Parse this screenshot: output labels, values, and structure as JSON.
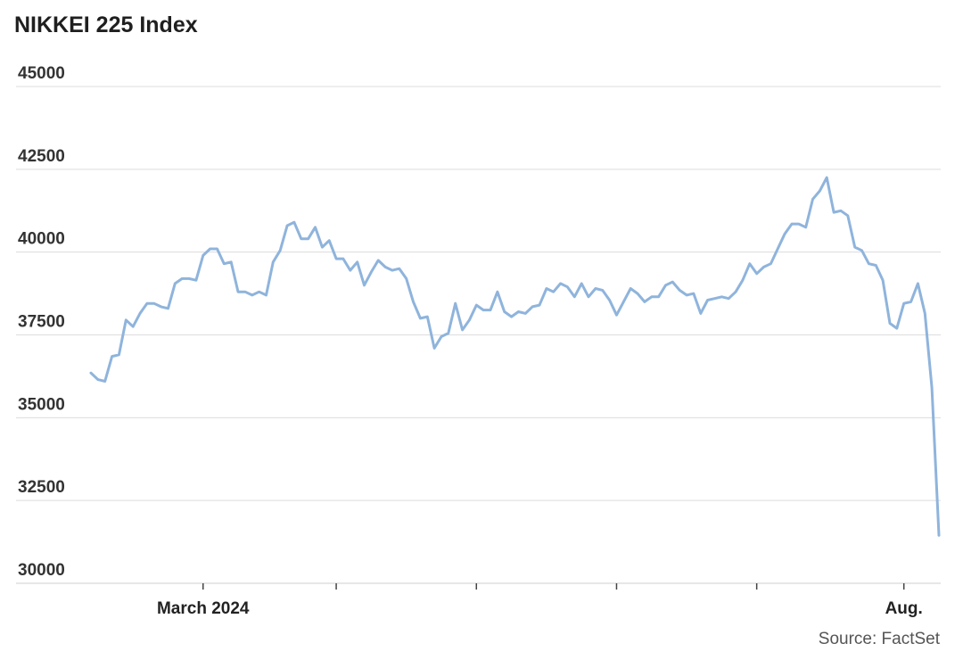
{
  "chart_data": {
    "type": "line",
    "title": "NIKKEI 225 Index",
    "source": "Source: FactSet",
    "ylim": [
      30000,
      45000
    ],
    "yticks": [
      "30000",
      "32500",
      "35000",
      "37500",
      "40000",
      "42500",
      "45000"
    ],
    "ytick_values": [
      30000,
      32500,
      35000,
      37500,
      40000,
      42500,
      45000
    ],
    "xticks": [
      {
        "label": "March 2024",
        "index": 16
      },
      {
        "label": "",
        "index": 35
      },
      {
        "label": "",
        "index": 55
      },
      {
        "label": "",
        "index": 75
      },
      {
        "label": "",
        "index": 95
      },
      {
        "label": "Aug.",
        "index": 116
      }
    ],
    "grid": true,
    "series": [
      {
        "color": "#8fb4dc",
        "values": [
          36350,
          36150,
          36100,
          36850,
          36900,
          37950,
          37750,
          38150,
          38450,
          38450,
          38350,
          38300,
          39050,
          39200,
          39200,
          39150,
          39900,
          40100,
          40100,
          39650,
          39700,
          38800,
          38800,
          38700,
          38800,
          38700,
          39700,
          40050,
          40800,
          40900,
          40400,
          40400,
          40750,
          40150,
          40350,
          39800,
          39800,
          39450,
          39700,
          39000,
          39400,
          39750,
          39550,
          39450,
          39500,
          39200,
          38500,
          38000,
          38050,
          37100,
          37450,
          37550,
          38450,
          37650,
          37950,
          38400,
          38250,
          38250,
          38800,
          38200,
          38050,
          38200,
          38150,
          38350,
          38400,
          38900,
          38800,
          39050,
          38950,
          38650,
          39050,
          38650,
          38900,
          38850,
          38550,
          38100,
          38500,
          38900,
          38750,
          38500,
          38650,
          38650,
          39000,
          39100,
          38850,
          38700,
          38750,
          38150,
          38550,
          38600,
          38650,
          38600,
          38800,
          39150,
          39650,
          39350,
          39550,
          39650,
          40100,
          40550,
          40850,
          40850,
          40750,
          41600,
          41850,
          42250,
          41200,
          41250,
          41100,
          40150,
          40050,
          39650,
          39600,
          39150,
          37850,
          37700,
          38450,
          38500,
          39050,
          38150,
          35900,
          31450
        ]
      }
    ]
  }
}
